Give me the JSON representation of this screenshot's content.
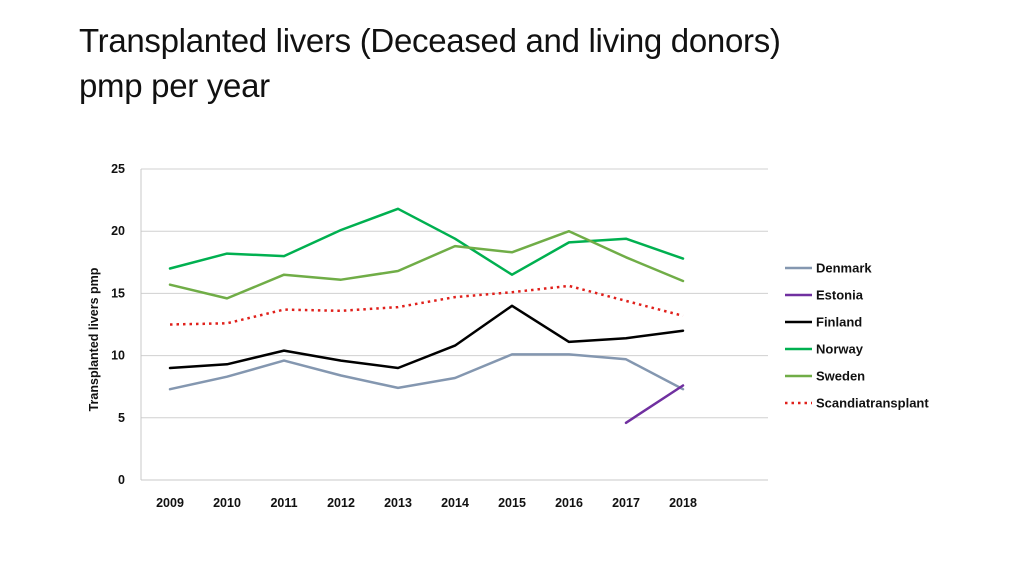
{
  "title_lines": [
    "Transplanted livers (Deceased and living donors)",
    "pmp per year"
  ],
  "chart_data": {
    "type": "line",
    "title": "Transplanted livers (Deceased and living donors) pmp per year",
    "xlabel": "",
    "ylabel": "Transplanted livers pmp",
    "categories": [
      "2009",
      "2010",
      "2011",
      "2012",
      "2013",
      "2014",
      "2015",
      "2016",
      "2017",
      "2018"
    ],
    "ylim": [
      0,
      25
    ],
    "yticks": [
      0,
      5,
      10,
      15,
      20,
      25
    ],
    "grid": true,
    "legend_position": "right",
    "series": [
      {
        "name": "Denmark",
        "color": "#8497b0",
        "dash": "solid",
        "values": [
          7.3,
          8.3,
          9.6,
          8.4,
          7.4,
          8.2,
          10.1,
          10.1,
          9.7,
          7.3
        ]
      },
      {
        "name": "Estonia",
        "color": "#7030a0",
        "dash": "solid",
        "values": [
          null,
          null,
          null,
          null,
          null,
          null,
          null,
          null,
          4.6,
          7.6
        ]
      },
      {
        "name": "Finland",
        "color": "#000000",
        "dash": "solid",
        "values": [
          9.0,
          9.3,
          10.4,
          9.6,
          9.0,
          10.8,
          14.0,
          11.1,
          11.4,
          12.0
        ]
      },
      {
        "name": "Norway",
        "color": "#00b050",
        "dash": "solid",
        "values": [
          17.0,
          18.2,
          18.0,
          20.1,
          21.8,
          19.4,
          16.5,
          19.1,
          19.4,
          17.8
        ]
      },
      {
        "name": "Sweden",
        "color": "#70ad47",
        "dash": "solid",
        "values": [
          15.7,
          14.6,
          16.5,
          16.1,
          16.8,
          18.8,
          18.3,
          20.0,
          17.9,
          16.0
        ]
      },
      {
        "name": "Scandiatransplant",
        "color": "#e0201b",
        "dash": "dotted",
        "values": [
          12.5,
          12.6,
          13.7,
          13.6,
          13.9,
          14.7,
          15.1,
          15.6,
          14.4,
          13.2
        ]
      }
    ]
  }
}
